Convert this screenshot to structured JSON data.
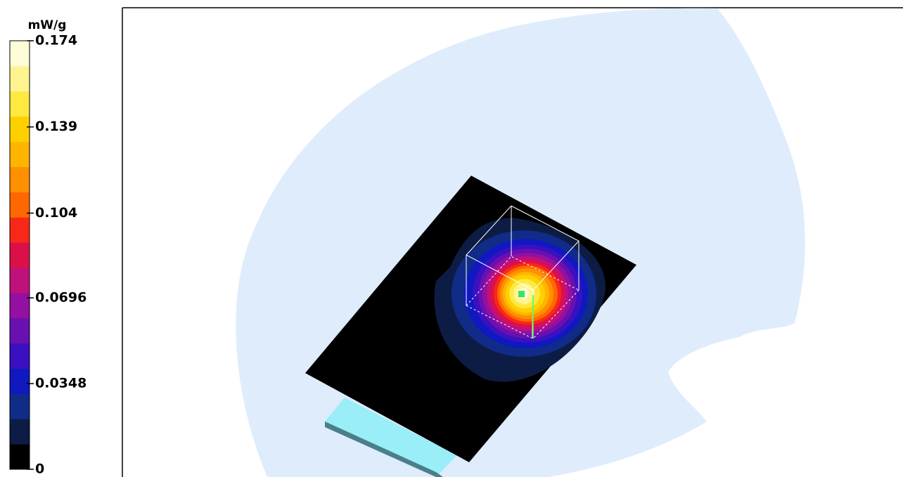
{
  "colorbar": {
    "unit": "mW/g",
    "min": 0,
    "max": 0.174,
    "ticks": [
      0.174,
      0.139,
      0.104,
      0.0696,
      0.0348,
      0
    ],
    "colors": [
      "#000000",
      "#0c1c44",
      "#102c88",
      "#1018c0",
      "#3a10c0",
      "#6810b0",
      "#9410a0",
      "#c0107c",
      "#dc1048",
      "#f82818",
      "#ff6800",
      "#ff9000",
      "#ffb400",
      "#ffd000",
      "#ffe840",
      "#fff490",
      "#fffcd8"
    ]
  }
}
